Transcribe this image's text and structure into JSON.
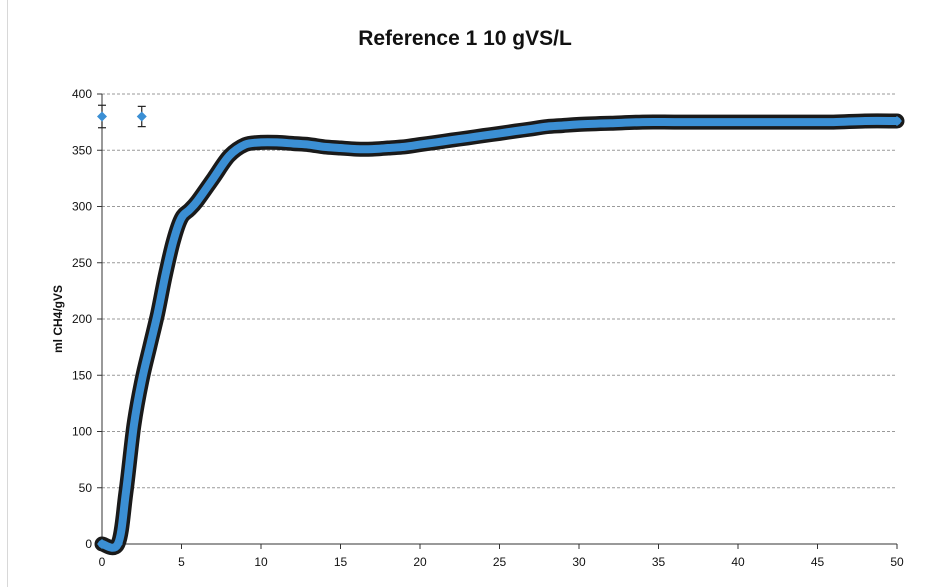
{
  "chart_data": {
    "type": "line",
    "title": "Reference 1 10 gVS/L",
    "xlabel": "",
    "ylabel": "ml CH4/gVS",
    "xlim": [
      0,
      50
    ],
    "ylim": [
      0,
      400
    ],
    "xticks": [
      "0",
      "5",
      "10",
      "15",
      "20",
      "25",
      "30",
      "35",
      "40",
      "45",
      "50"
    ],
    "yticks": [
      "0",
      "50",
      "100",
      "150",
      "200",
      "250",
      "300",
      "350",
      "400"
    ],
    "grid": "horizontal",
    "legend": "none",
    "series": [
      {
        "color": "#3b8fd4",
        "outline_color": "#1a1a1a",
        "x": [
          0,
          1,
          1.5,
          2,
          2.5,
          3,
          3.5,
          4,
          4.5,
          5,
          5.5,
          6,
          7,
          8,
          9,
          10,
          11,
          12,
          13,
          14,
          15,
          16,
          17,
          18,
          19,
          20,
          21,
          22,
          23,
          24,
          25,
          26,
          27,
          28,
          29,
          30,
          32,
          34,
          36,
          38,
          40,
          42,
          44,
          46,
          48,
          50
        ],
        "y": [
          0,
          0,
          45,
          105,
          145,
          175,
          205,
          240,
          270,
          290,
          297,
          305,
          325,
          345,
          355,
          357,
          357,
          356,
          355,
          353,
          352,
          351,
          351,
          352,
          353,
          355,
          357,
          359,
          361,
          363,
          365,
          367,
          369,
          371,
          372,
          373,
          374,
          375,
          375,
          375,
          375,
          375,
          375,
          375,
          376,
          376
        ]
      }
    ],
    "error_points": [
      {
        "x": 0,
        "y": 380,
        "err": 10
      },
      {
        "x": 2.5,
        "y": 380,
        "err": 9
      }
    ]
  }
}
